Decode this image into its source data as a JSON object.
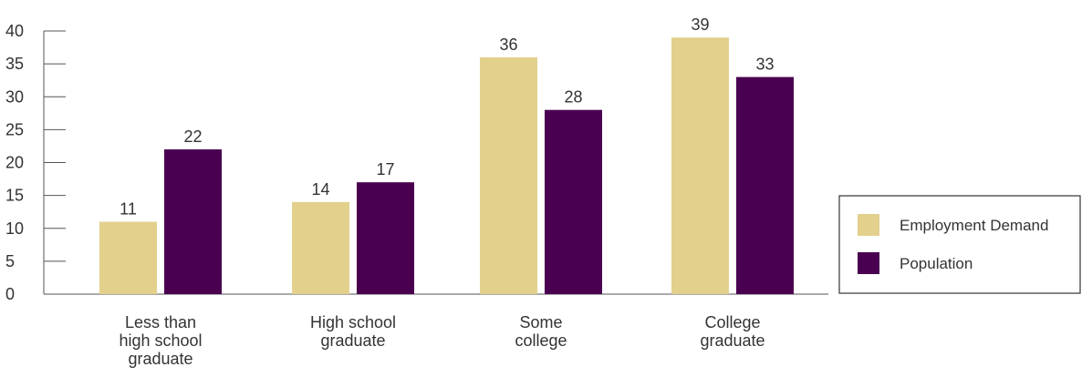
{
  "chart_data": {
    "type": "bar",
    "title": "",
    "xlabel": "",
    "ylabel": "",
    "ylim": [
      0,
      40
    ],
    "yticks": [
      0,
      5,
      10,
      15,
      20,
      25,
      30,
      35,
      40
    ],
    "categories": [
      [
        "Less than",
        "high school",
        "graduate"
      ],
      [
        "High school",
        "graduate"
      ],
      [
        "Some",
        "college"
      ],
      [
        "College",
        "graduate"
      ]
    ],
    "series": [
      {
        "name": "Employment Demand",
        "color": "#e2d08c",
        "values": [
          11,
          14,
          36,
          39
        ]
      },
      {
        "name": "Population",
        "color": "#4a0050",
        "values": [
          22,
          17,
          28,
          33
        ]
      }
    ],
    "grid": false,
    "legend_position": "right"
  }
}
